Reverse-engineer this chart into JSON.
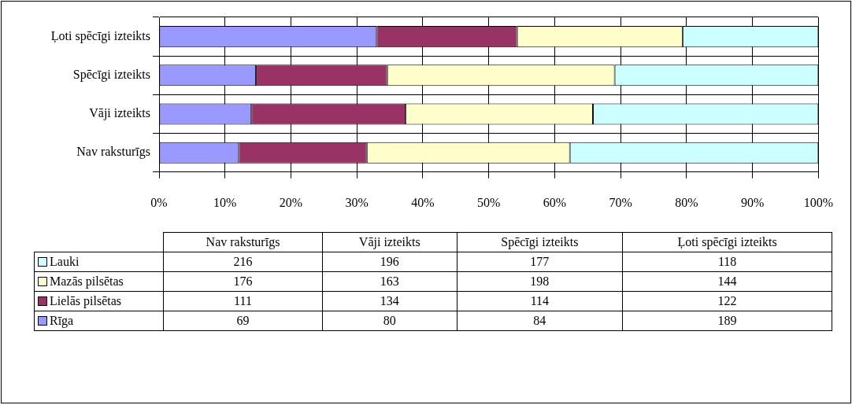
{
  "chart_data": [
    {
      "type": "bar",
      "orientation": "horizontal",
      "stacked": true,
      "categories": [
        "Ļoti spēcīgi izteikts",
        "Spēcīgi izteikts",
        "Vāji izteikts",
        "Nav raksturīgs"
      ],
      "series": [
        {
          "name": "Rīga",
          "color": "#9999ff",
          "values": [
            33.0,
            14.7,
            14.0,
            12.1
          ]
        },
        {
          "name": "Lielās pilsētas",
          "color": "#993366",
          "values": [
            21.3,
            19.9,
            23.4,
            19.4
          ]
        },
        {
          "name": "Mazās pilsētas",
          "color": "#ffffcc",
          "values": [
            25.1,
            34.5,
            28.4,
            30.8
          ]
        },
        {
          "name": "Lauki",
          "color": "#ccffff",
          "values": [
            20.6,
            30.9,
            34.2,
            37.7
          ]
        }
      ],
      "xlim": [
        0,
        100
      ],
      "xticks": [
        {
          "value": 0,
          "label": "0%"
        },
        {
          "value": 10,
          "label": "10%"
        },
        {
          "value": 20,
          "label": "20%"
        },
        {
          "value": 30,
          "label": "30%"
        },
        {
          "value": 40,
          "label": "40%"
        },
        {
          "value": 50,
          "label": "50%"
        },
        {
          "value": 60,
          "label": "60%"
        },
        {
          "value": 70,
          "label": "70%"
        },
        {
          "value": 80,
          "label": "80%"
        },
        {
          "value": 90,
          "label": "90%"
        },
        {
          "value": 100,
          "label": "100%"
        }
      ],
      "grid": true
    },
    {
      "type": "other",
      "categories": [
        "Nav raksturīgs",
        "Vāji izteikts",
        "Spēcīgi izteikts",
        "Ļoti spēcīgi izteikts"
      ],
      "series": [
        {
          "values": [
            216,
            196,
            177,
            118
          ]
        },
        {
          "values": [
            176,
            163,
            198,
            144
          ]
        },
        {
          "values": [
            111,
            134,
            114,
            122
          ]
        },
        {
          "values": [
            69,
            80,
            84,
            189
          ]
        }
      ],
      "data_labels": true
    }
  ]
}
